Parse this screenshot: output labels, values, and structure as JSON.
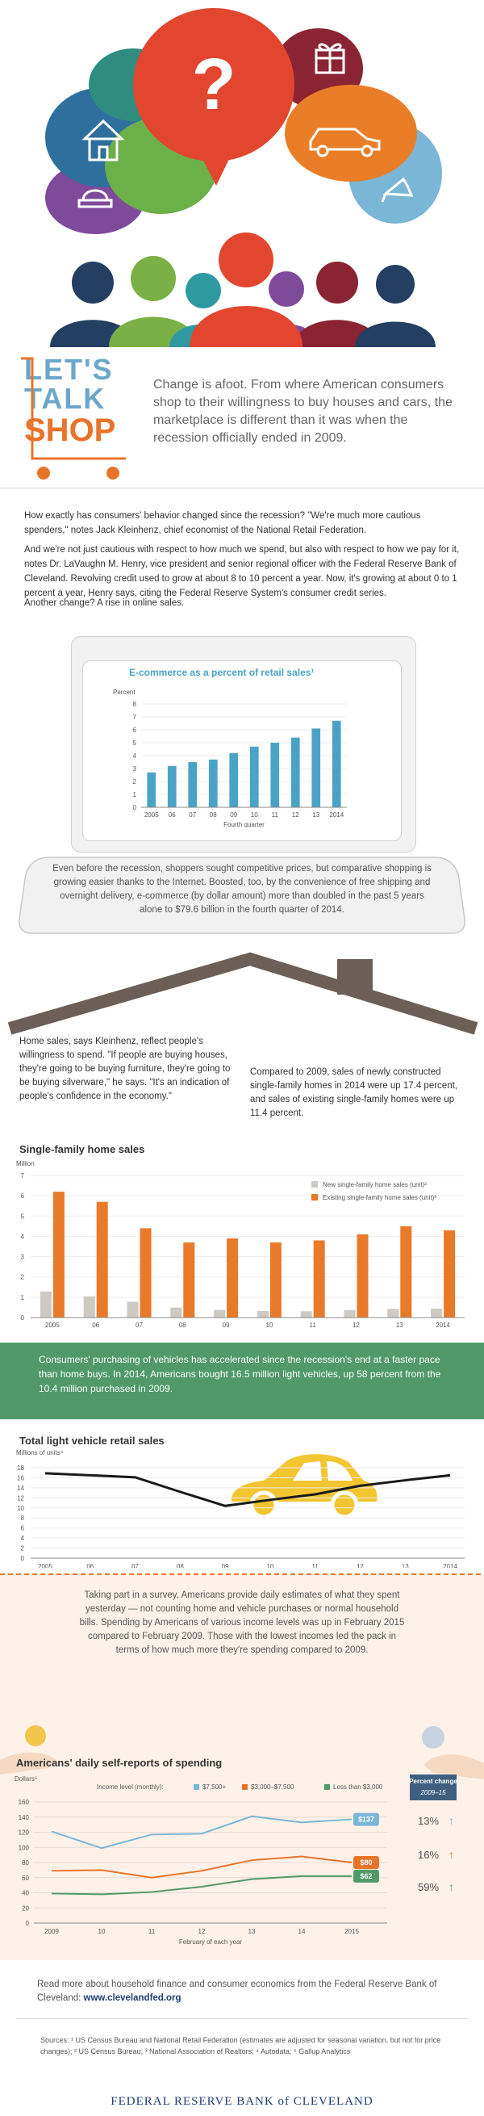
{
  "header": {
    "lets": "LET'S",
    "talk": "TALK",
    "shop": "SHOP",
    "intro": "Change is afoot. From where American consumers shop to their willingness to buy houses and cars, the marketplace is different than it was when the recession officially ended in 2009."
  },
  "hero": {
    "icons": [
      "question-mark-icon",
      "gift-icon",
      "house-icon",
      "car-icon",
      "sofa-icon",
      "shoe-icon"
    ]
  },
  "paragraphs": {
    "p1": "How exactly has consumers' behavior changed since the recession? \"We're much more cautious spenders,\" notes Jack Kleinhenz, chief economist of the National Retail Federation.",
    "p2": "And we're not just cautious with respect to how much we spend, but also with respect to how we pay for it, notes Dr. LaVaughn M. Henry, vice president and senior regional officer with the Federal Reserve Bank of Cleveland. Revolving credit used to grow at about 8 to 10 percent a year. Now, it's growing at about 0 to 1 percent a year, Henry says, citing the Federal Reserve System's consumer credit series.",
    "p3": "Another change? A rise in online sales.",
    "ecomm_note": "Even before the recession, shoppers sought competitive prices, but comparative shopping is growing easier thanks to the Internet. Boosted, too, by the convenience of free shipping and overnight delivery, e-commerce (by dollar amount) more than doubled in the past 5 years alone to $79.6 billion in the fourth quarter of 2014.",
    "home_left": "Home sales, says Kleinhenz, reflect people's willingness to spend. \"If people are buying houses, they're going to be buying furniture, they're going to be buying silverware,\" he says. \"It's an indication of people's confidence in the economy.\"",
    "home_right": "Compared to 2009, sales of newly constructed single-family homes in 2014 were up 17.4 percent, and sales of existing single-family homes were up 11.4 percent.",
    "vehicles": "Consumers' purchasing of vehicles has accelerated since the recession's end at a faster pace than home buys. In 2014, Americans bought 16.5 million light vehicles, up 58 percent from the 10.4 million purchased in 2009.",
    "survey": "Taking part in a survey, Americans provide daily estimates of what they spent yesterday — not counting home and vehicle purchases or normal household bills. Spending by Americans of various income levels was up in February 2015 compared to February 2009. Those with the lowest incomes led the pack in terms of how much more they're spending compared to 2009.",
    "read_more_a": "Read more about household finance and consumer economics from the Federal Reserve Bank of Cleveland:",
    "read_more_link": "www.clevelandfed.org",
    "sources": "Sources: ¹ US Census Bureau and National Retail Federation (estimates are adjusted for seasonal variation, but not for price changes); ² US Census Bureau; ³ National Association of Realtors; ⁴ Autodata; ⁵ Gallup Analytics",
    "footer": "FEDERAL RESERVE BANK of CLEVELAND"
  },
  "chart_data": [
    {
      "type": "bar",
      "title": "E-commerce as a percent of retail sales¹",
      "ylabel": "Percent",
      "xlabel": "Fourth quarter",
      "categories": [
        "2005",
        "06",
        "07",
        "08",
        "09",
        "10",
        "11",
        "12",
        "13",
        "2014"
      ],
      "values": [
        2.7,
        3.2,
        3.5,
        3.7,
        4.2,
        4.7,
        5.0,
        5.4,
        6.1,
        6.7
      ],
      "ylim": [
        0,
        8
      ],
      "yticks": [
        0,
        1,
        2,
        3,
        4,
        5,
        6,
        7,
        8
      ],
      "color": "#4aa3c7"
    },
    {
      "type": "bar",
      "title": "Single-family home sales",
      "ylabel": "Million",
      "categories": [
        "2005",
        "06",
        "07",
        "08",
        "09",
        "10",
        "11",
        "12",
        "13",
        "2014"
      ],
      "series": [
        {
          "name": "New single-family home sales (unit)²",
          "values": [
            1.28,
            1.05,
            0.78,
            0.49,
            0.38,
            0.32,
            0.31,
            0.37,
            0.43,
            0.44
          ],
          "color": "#cfc9c3"
        },
        {
          "name": "Existing single-family home sales (unit)³",
          "values": [
            6.2,
            5.7,
            4.4,
            3.7,
            3.9,
            3.7,
            3.8,
            4.1,
            4.5,
            4.3
          ],
          "color": "#e87a2a"
        }
      ],
      "ylim": [
        0,
        7
      ],
      "yticks": [
        0,
        1,
        2,
        3,
        4,
        5,
        6,
        7
      ],
      "legend": "top-right"
    },
    {
      "type": "line",
      "title": "Total light vehicle retail sales",
      "ylabel": "Millions of units⁴",
      "categories": [
        "2005",
        "06",
        "07",
        "08",
        "09",
        "10",
        "11",
        "12",
        "13",
        "2014"
      ],
      "series": [
        {
          "name": "",
          "values": [
            16.9,
            16.5,
            16.1,
            13.2,
            10.4,
            11.6,
            12.7,
            14.4,
            15.5,
            16.5
          ],
          "color": "#1a1a1a"
        }
      ],
      "ylim": [
        0,
        18
      ],
      "yticks": [
        0,
        2,
        4,
        6,
        8,
        10,
        12,
        14,
        16,
        18
      ]
    },
    {
      "type": "line",
      "title": "Americans' daily self-reports of spending",
      "ylabel": "Dollars⁵",
      "xlabel": "February of each year",
      "legend_prefix": "Income level (monthly):",
      "categories": [
        "2009",
        "10",
        "11",
        "12",
        "13",
        "14",
        "2015"
      ],
      "series": [
        {
          "name": "$7,500+",
          "values": [
            121,
            99,
            117,
            118,
            141,
            133,
            137
          ],
          "color": "#7ab6d6",
          "end_label": "$137",
          "change": "13%"
        },
        {
          "name": "$3,000–$7,500",
          "values": [
            69,
            70,
            60,
            69,
            83,
            88,
            80
          ],
          "color": "#e8742a",
          "end_label": "$80",
          "change": "16%"
        },
        {
          "name": "Less than $3,000",
          "values": [
            39,
            38,
            41,
            48,
            58,
            62,
            62
          ],
          "color": "#4f9a68",
          "end_label": "$62",
          "change": "59%"
        }
      ],
      "ylim": [
        0,
        160
      ],
      "yticks": [
        0,
        20,
        40,
        60,
        80,
        100,
        120,
        140,
        160
      ],
      "change_header": "Percent change",
      "change_sub": "2009–15"
    }
  ]
}
